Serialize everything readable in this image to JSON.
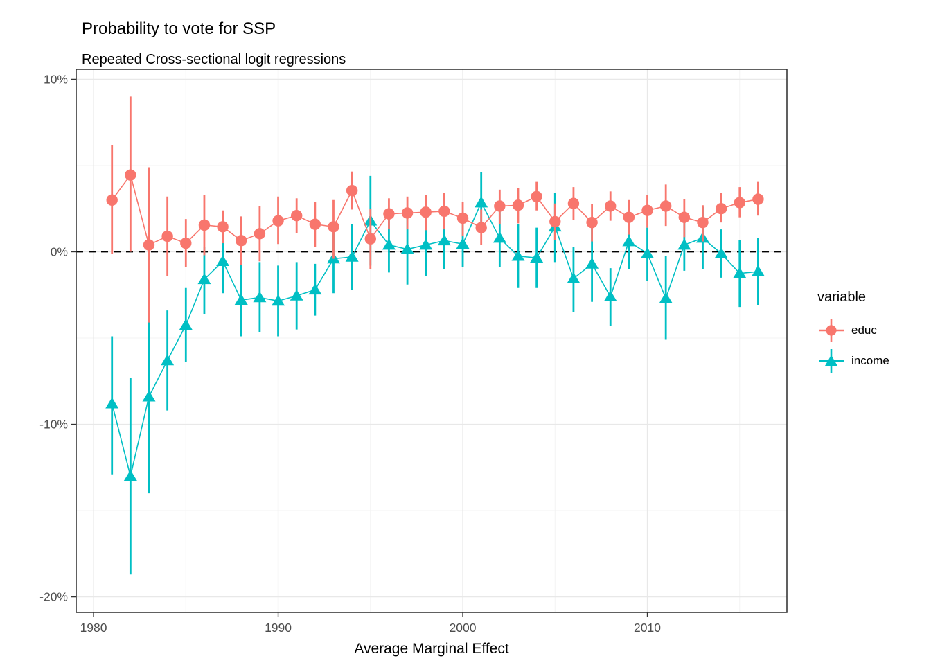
{
  "title": "Probability to vote for SSP",
  "subtitle": "Repeated Cross-sectional logit regressions",
  "x_axis": {
    "label": "Average Marginal Effect",
    "ticks": [
      {
        "value": 1980,
        "label": "1980"
      },
      {
        "value": 1990,
        "label": "1990"
      },
      {
        "value": 2000,
        "label": "2000"
      },
      {
        "value": 2010,
        "label": "2010"
      }
    ]
  },
  "y_axis": {
    "ticks": [
      {
        "value": 10,
        "label": "10%"
      },
      {
        "value": 0,
        "label": "0%"
      },
      {
        "value": -10,
        "label": "-10%"
      },
      {
        "value": -20,
        "label": "-20%"
      }
    ]
  },
  "legend": {
    "title": "variable",
    "entries": [
      {
        "label": "educ",
        "color": "#F8766D",
        "shape": "circle"
      },
      {
        "label": "income",
        "color": "#00BFC4",
        "shape": "triangle"
      }
    ]
  },
  "chart_data": {
    "type": "pointrange-line",
    "title": "Probability to vote for SSP",
    "subtitle": "Repeated Cross-sectional logit regressions",
    "xlabel": "Average Marginal Effect",
    "ylabel": "",
    "unit": "percent",
    "xlim": [
      1979.06,
      2017.56
    ],
    "ylim": [
      -20.9,
      10.58
    ],
    "x_major_gridlines": [
      1980,
      1990,
      2000,
      2010
    ],
    "x_minor_gridlines": [
      1985,
      1995,
      2005,
      2015
    ],
    "y_major_gridlines": [
      10,
      0,
      -10,
      -20
    ],
    "y_minor_gridlines": [
      5,
      -5,
      -15
    ],
    "reference_line": {
      "y": 0,
      "style": "dashed",
      "color": "#000000"
    },
    "legend_position": "right",
    "x": [
      1981,
      1982,
      1983,
      1984,
      1985,
      1986,
      1987,
      1988,
      1989,
      1990,
      1991,
      1992,
      1993,
      1994,
      1995,
      1996,
      1997,
      1998,
      1999,
      2000,
      2001,
      2002,
      2003,
      2004,
      2005,
      2006,
      2007,
      2008,
      2009,
      2010,
      2011,
      2012,
      2013,
      2014,
      2015,
      2016
    ],
    "series": [
      {
        "name": "educ",
        "shape": "circle",
        "color": "#F8766D",
        "values": [
          3.0,
          4.45,
          0.4,
          0.9,
          0.5,
          1.55,
          1.45,
          0.65,
          1.05,
          1.8,
          2.1,
          1.6,
          1.45,
          3.55,
          0.75,
          2.2,
          2.25,
          2.3,
          2.35,
          1.95,
          1.4,
          2.65,
          2.7,
          3.2,
          1.75,
          2.8,
          1.7,
          2.65,
          2.0,
          2.4,
          2.65,
          2.0,
          1.7,
          2.5,
          2.85,
          3.05
        ],
        "lower": [
          -0.1,
          0.0,
          -4.1,
          -1.4,
          -0.9,
          -0.2,
          0.5,
          -0.75,
          -0.55,
          0.45,
          1.1,
          0.3,
          -0.4,
          2.45,
          -1.0,
          1.3,
          1.3,
          1.25,
          1.3,
          0.9,
          0.4,
          1.6,
          1.65,
          2.4,
          0.7,
          1.85,
          0.6,
          1.8,
          1.0,
          1.4,
          1.5,
          0.85,
          0.6,
          1.7,
          2.0,
          2.1
        ],
        "upper": [
          6.2,
          9.0,
          4.9,
          3.2,
          1.9,
          3.3,
          2.4,
          2.05,
          2.65,
          3.2,
          3.1,
          2.9,
          3.0,
          4.65,
          2.5,
          3.1,
          3.2,
          3.3,
          3.4,
          2.9,
          2.45,
          3.6,
          3.7,
          4.05,
          2.8,
          3.75,
          2.75,
          3.5,
          3.0,
          3.3,
          3.9,
          3.05,
          2.7,
          3.4,
          3.75,
          4.05
        ]
      },
      {
        "name": "income",
        "shape": "triangle",
        "color": "#00BFC4",
        "values": [
          -8.8,
          -13.0,
          -8.4,
          -6.3,
          -4.25,
          -1.6,
          -0.55,
          -2.8,
          -2.65,
          -2.85,
          -2.55,
          -2.2,
          -0.4,
          -0.3,
          1.8,
          0.4,
          0.15,
          0.4,
          0.65,
          0.45,
          2.85,
          0.8,
          -0.25,
          -0.35,
          1.45,
          -1.55,
          -0.7,
          -2.6,
          0.6,
          -0.1,
          -2.7,
          0.4,
          0.8,
          -0.1,
          -1.25,
          -1.15
        ],
        "lower": [
          -12.9,
          -18.7,
          -14.0,
          -9.2,
          -6.4,
          -3.6,
          -2.4,
          -4.9,
          -4.65,
          -4.9,
          -4.5,
          -3.7,
          -2.4,
          -2.2,
          -0.8,
          -1.2,
          -1.9,
          -1.4,
          -1.0,
          -0.9,
          1.1,
          -0.9,
          -2.1,
          -2.1,
          -0.6,
          -3.5,
          -2.9,
          -4.3,
          -1.0,
          -1.7,
          -5.1,
          -1.1,
          -1.0,
          -1.5,
          -3.2,
          -3.1
        ],
        "upper": [
          -4.9,
          -7.3,
          -2.8,
          -3.4,
          -2.1,
          0.3,
          1.3,
          -0.7,
          -0.6,
          -0.8,
          -0.6,
          -0.7,
          1.6,
          1.6,
          4.4,
          2.0,
          2.2,
          2.2,
          2.3,
          1.8,
          4.6,
          2.5,
          1.6,
          1.4,
          3.4,
          0.3,
          1.5,
          -0.95,
          2.2,
          1.4,
          -0.25,
          1.9,
          2.6,
          1.3,
          0.7,
          0.8
        ]
      }
    ]
  },
  "style": {
    "grid_major_color": "#E8E8E8",
    "grid_minor_color": "#F3F3F3",
    "panel_border_color": "#2b2b2b",
    "tick_label_color": "#4d4d4d"
  }
}
